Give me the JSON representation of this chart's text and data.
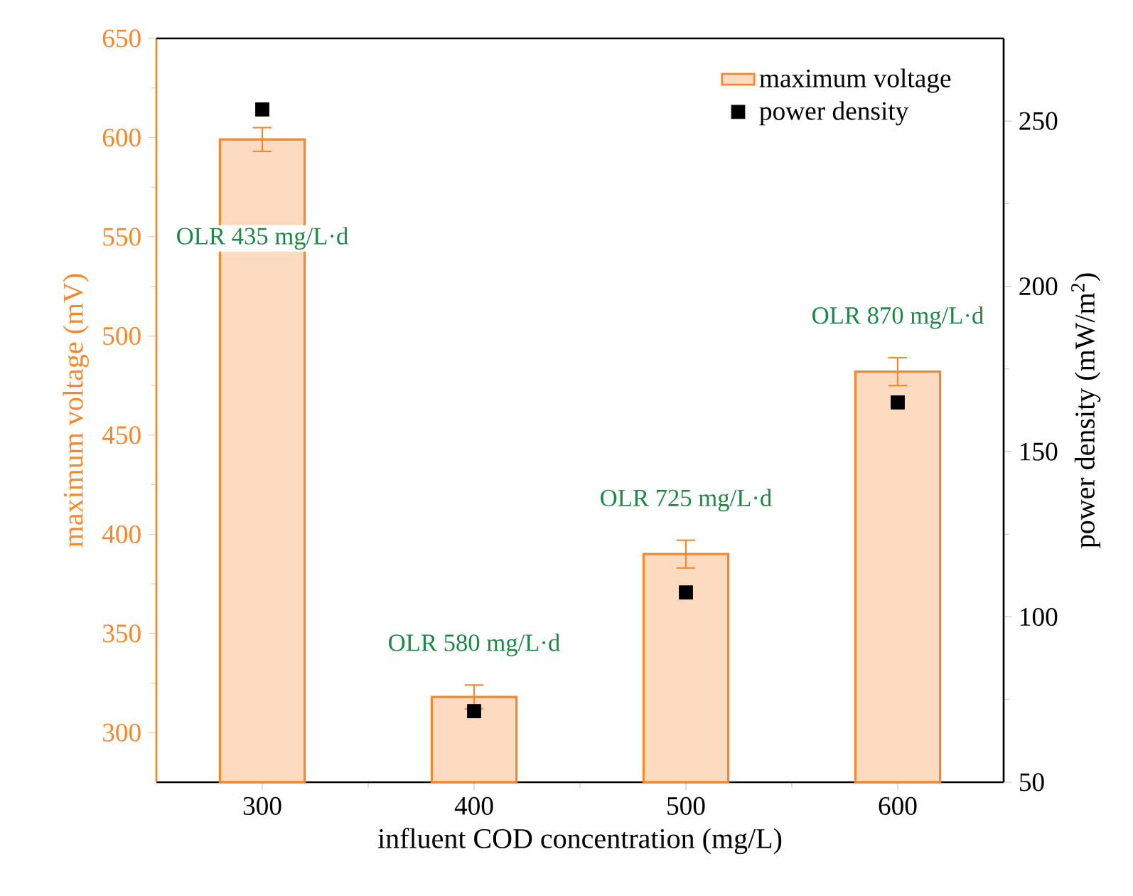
{
  "chart_data": {
    "type": "bar",
    "xlabel": "influent COD concentration (mg/L)",
    "ylabel": "maximum voltage (mV)",
    "y2label": "power density (mW/m$^{2}$)",
    "x": [
      300,
      400,
      500,
      600
    ],
    "series": [
      {
        "name": "maximum voltage",
        "color": "#f5872f",
        "values": [
          599,
          318,
          390,
          482
        ],
        "errors": [
          6,
          6,
          7,
          7
        ]
      },
      {
        "name": "power density",
        "type": "scatter",
        "color": "#000000",
        "marker": "square",
        "axis": "y2",
        "values": [
          253.5,
          71.5,
          107.4,
          164.9
        ]
      }
    ],
    "xlim": [
      250,
      650
    ],
    "xticks": [
      300,
      400,
      500,
      600
    ],
    "ylim": [
      275,
      650
    ],
    "yticks": [
      300,
      350,
      400,
      450,
      500,
      550,
      600,
      650
    ],
    "y2lim": [
      50,
      275
    ],
    "y2ticks": [
      50,
      100,
      150,
      200,
      250
    ],
    "legend": "top right",
    "annotations": [
      "OLR 435 mg/L·d",
      "OLR 580 mg/L·d",
      "OLR 725 mg/L·d",
      "OLR 870 mg/L·d"
    ]
  }
}
